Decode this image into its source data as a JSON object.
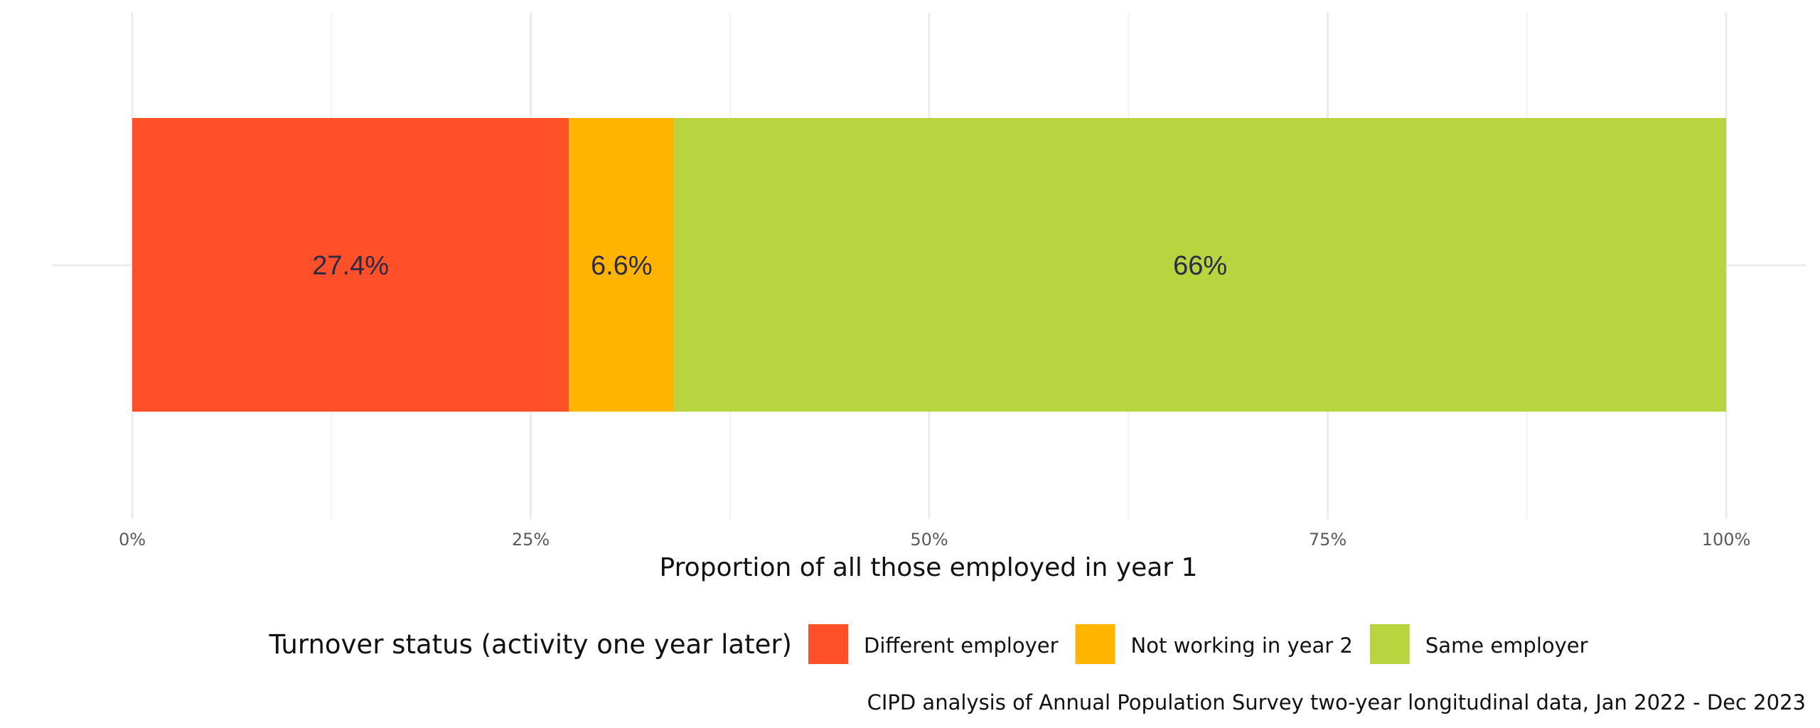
{
  "chart_data": {
    "type": "bar",
    "orientation": "horizontal",
    "stacked": true,
    "categories": [
      ""
    ],
    "series": [
      {
        "name": "Different employer",
        "values": [
          27.4
        ],
        "label": "27.4%",
        "color": "#FF5029"
      },
      {
        "name": "Not working in year 2",
        "values": [
          6.6
        ],
        "label": "6.6%",
        "color": "#FFB400"
      },
      {
        "name": "Same employer",
        "values": [
          66
        ],
        "label": "66%",
        "color": "#B8D43F"
      }
    ],
    "xlabel": "Proportion of all those employed in year 1",
    "ylabel": "",
    "xlim": [
      0,
      100
    ],
    "x_ticks": [
      0,
      25,
      50,
      75,
      100
    ],
    "x_tick_labels": [
      "0%",
      "25%",
      "50%",
      "75%",
      "100%"
    ],
    "grid": true,
    "legend": {
      "title": "Turnover status (activity one year later)",
      "position": "bottom",
      "entries": [
        "Different employer",
        "Not working in year 2",
        "Same employer"
      ]
    },
    "caption": "CIPD analysis of Annual Population Survey two-year longitudinal data, Jan 2022 - Dec 2023"
  }
}
